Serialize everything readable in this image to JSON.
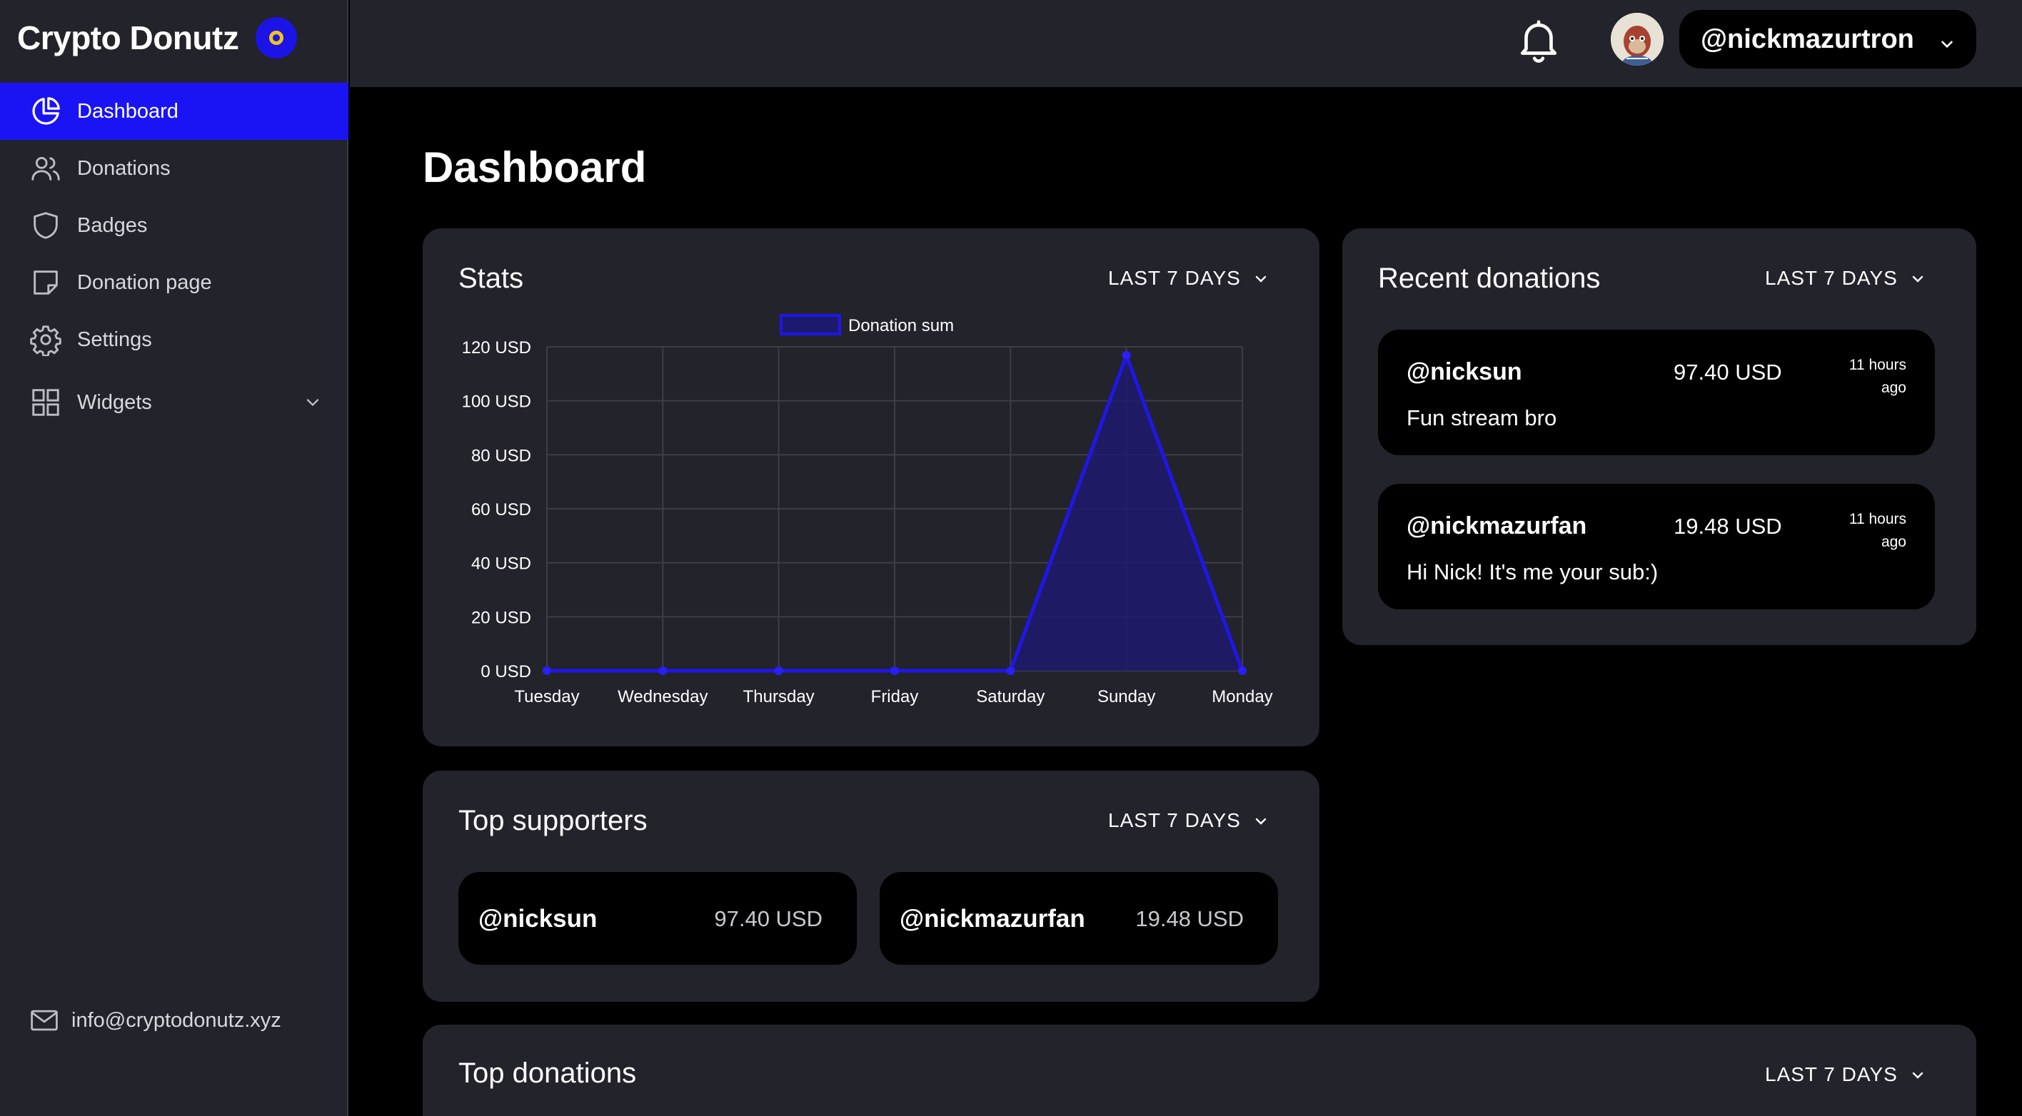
{
  "app": {
    "name": "Crypto Donutz"
  },
  "sidebar": {
    "items": [
      {
        "label": "Dashboard",
        "icon": "pie-chart-icon"
      },
      {
        "label": "Donations",
        "icon": "users-icon"
      },
      {
        "label": "Badges",
        "icon": "shield-icon"
      },
      {
        "label": "Donation page",
        "icon": "note-icon"
      },
      {
        "label": "Settings",
        "icon": "gear-icon"
      },
      {
        "label": "Widgets",
        "icon": "grid-icon"
      }
    ],
    "footer_email": "info@cryptodonutz.xyz"
  },
  "topbar": {
    "username": "@nickmazurtron"
  },
  "page": {
    "title": "Dashboard"
  },
  "stats": {
    "title": "Stats",
    "range": "LAST 7 DAYS"
  },
  "recent": {
    "title": "Recent donations",
    "range": "LAST 7 DAYS",
    "items": [
      {
        "name": "@nicksun",
        "amount": "97.40 USD",
        "time_line1": "11 hours",
        "time_line2": "ago",
        "message": "Fun stream bro"
      },
      {
        "name": "@nickmazurfan",
        "amount": "19.48 USD",
        "time_line1": "11 hours",
        "time_line2": "ago",
        "message": "Hi Nick! It's me your sub:)"
      }
    ]
  },
  "supporters": {
    "title": "Top supporters",
    "range": "LAST 7 DAYS",
    "items": [
      {
        "name": "@nicksun",
        "amount": "97.40 USD"
      },
      {
        "name": "@nickmazurfan",
        "amount": "19.48 USD"
      }
    ]
  },
  "top_donations": {
    "title": "Top donations",
    "range": "LAST 7 DAYS"
  },
  "colors": {
    "accent": "#1a14f5",
    "panel": "#23232b",
    "background": "#000000"
  },
  "chart_data": {
    "type": "area",
    "categories": [
      "Tuesday",
      "Wednesday",
      "Thursday",
      "Friday",
      "Saturday",
      "Sunday",
      "Monday"
    ],
    "series": [
      {
        "name": "Donation sum",
        "values": [
          0,
          0,
          0,
          0,
          0,
          116.88,
          0
        ]
      }
    ],
    "ylim": [
      0,
      120
    ],
    "yticks": [
      0,
      20,
      40,
      60,
      80,
      100,
      120
    ],
    "ytick_suffix": " USD",
    "legend": "top-center",
    "grid": true
  }
}
